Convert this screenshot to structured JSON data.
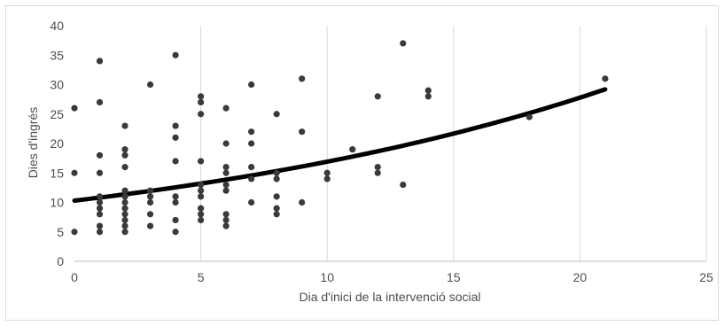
{
  "chart_data": {
    "type": "scatter",
    "title": "",
    "xlabel": "Dia d'inici de la intervenció social",
    "ylabel": "Dies d'ingrés",
    "xlim": [
      0,
      25
    ],
    "ylim": [
      0,
      40
    ],
    "xticks": [
      0,
      5,
      10,
      15,
      20,
      25
    ],
    "yticks": [
      0,
      5,
      10,
      15,
      20,
      25,
      30,
      35,
      40
    ],
    "grid": "vertical",
    "legend": "none",
    "colors": {
      "points": "#3a3a3a",
      "trend": "#000000",
      "grid": "#d9d9d9"
    },
    "points": [
      [
        0,
        26
      ],
      [
        0,
        15
      ],
      [
        0,
        5
      ],
      [
        1,
        34
      ],
      [
        1,
        27
      ],
      [
        1,
        18
      ],
      [
        1,
        15
      ],
      [
        1,
        11
      ],
      [
        1,
        10
      ],
      [
        1,
        9
      ],
      [
        1,
        8
      ],
      [
        1,
        6
      ],
      [
        1,
        5
      ],
      [
        2,
        23
      ],
      [
        2,
        19
      ],
      [
        2,
        18
      ],
      [
        2,
        16
      ],
      [
        2,
        12
      ],
      [
        2,
        11
      ],
      [
        2,
        10
      ],
      [
        2,
        9
      ],
      [
        2,
        8
      ],
      [
        2,
        7
      ],
      [
        2,
        6
      ],
      [
        2,
        5
      ],
      [
        3,
        30
      ],
      [
        3,
        12
      ],
      [
        3,
        11
      ],
      [
        3,
        10
      ],
      [
        3,
        8
      ],
      [
        3,
        6
      ],
      [
        4,
        35
      ],
      [
        4,
        23
      ],
      [
        4,
        21
      ],
      [
        4,
        17
      ],
      [
        4,
        11
      ],
      [
        4,
        10
      ],
      [
        4,
        7
      ],
      [
        4,
        5
      ],
      [
        5,
        28
      ],
      [
        5,
        27
      ],
      [
        5,
        25
      ],
      [
        5,
        17
      ],
      [
        5,
        13
      ],
      [
        5,
        12
      ],
      [
        5,
        11
      ],
      [
        5,
        9
      ],
      [
        5,
        8
      ],
      [
        5,
        7
      ],
      [
        6,
        26
      ],
      [
        6,
        20
      ],
      [
        6,
        16
      ],
      [
        6,
        15
      ],
      [
        6,
        13
      ],
      [
        6,
        12
      ],
      [
        6,
        8
      ],
      [
        6,
        7
      ],
      [
        6,
        6
      ],
      [
        7,
        30
      ],
      [
        7,
        22
      ],
      [
        7,
        20
      ],
      [
        7,
        16
      ],
      [
        7,
        14
      ],
      [
        7,
        10
      ],
      [
        8,
        25
      ],
      [
        8,
        15
      ],
      [
        8,
        14
      ],
      [
        8,
        11
      ],
      [
        8,
        9
      ],
      [
        8,
        8
      ],
      [
        9,
        31
      ],
      [
        9,
        22
      ],
      [
        9,
        10
      ],
      [
        10,
        15
      ],
      [
        10,
        14
      ],
      [
        11,
        19
      ],
      [
        12,
        28
      ],
      [
        12,
        16
      ],
      [
        12,
        15
      ],
      [
        13,
        37
      ],
      [
        13,
        13
      ],
      [
        14,
        29
      ],
      [
        14,
        28
      ],
      [
        18,
        24.5
      ],
      [
        21,
        31
      ]
    ],
    "trendline": {
      "type": "exponential",
      "x_range": [
        0,
        21
      ],
      "y_start": 10.3,
      "y_end": 29.2
    }
  }
}
